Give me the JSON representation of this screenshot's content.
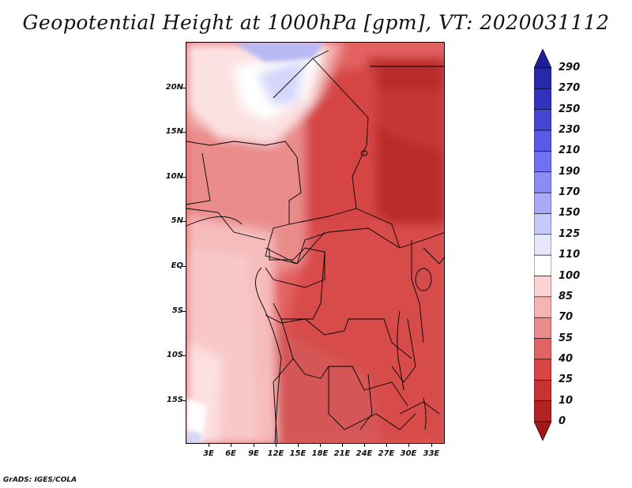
{
  "title": "Geopotential Height at 1000hPa [gpm], VT: 2020031112",
  "footer": "GrADS: IGES/COLA",
  "lat_ticks": [
    "20N",
    "15N",
    "10N",
    "5N",
    "EQ",
    "5S",
    "10S",
    "15S"
  ],
  "lon_ticks": [
    "3E",
    "6E",
    "9E",
    "12E",
    "15E",
    "18E",
    "21E",
    "24E",
    "27E",
    "30E",
    "33E"
  ],
  "map_extent": {
    "lon_min": 0,
    "lon_max": 35,
    "lat_min": -20,
    "lat_max": 25
  },
  "colorbar": {
    "labels": [
      "290",
      "270",
      "250",
      "230",
      "210",
      "190",
      "170",
      "150",
      "125",
      "110",
      "100",
      "85",
      "70",
      "55",
      "40",
      "25",
      "10",
      "0"
    ],
    "colors": [
      "#1e1e96",
      "#2828aa",
      "#3232be",
      "#4646d2",
      "#5a5ae6",
      "#7070f0",
      "#8c8cf5",
      "#aaaaf8",
      "#c8c8fa",
      "#e6e6fc",
      "#ffffff",
      "#fcd2d2",
      "#f5b4b4",
      "#eb8c8c",
      "#e06464",
      "#d84646",
      "#c83232",
      "#b42323",
      "#a01818"
    ]
  }
}
